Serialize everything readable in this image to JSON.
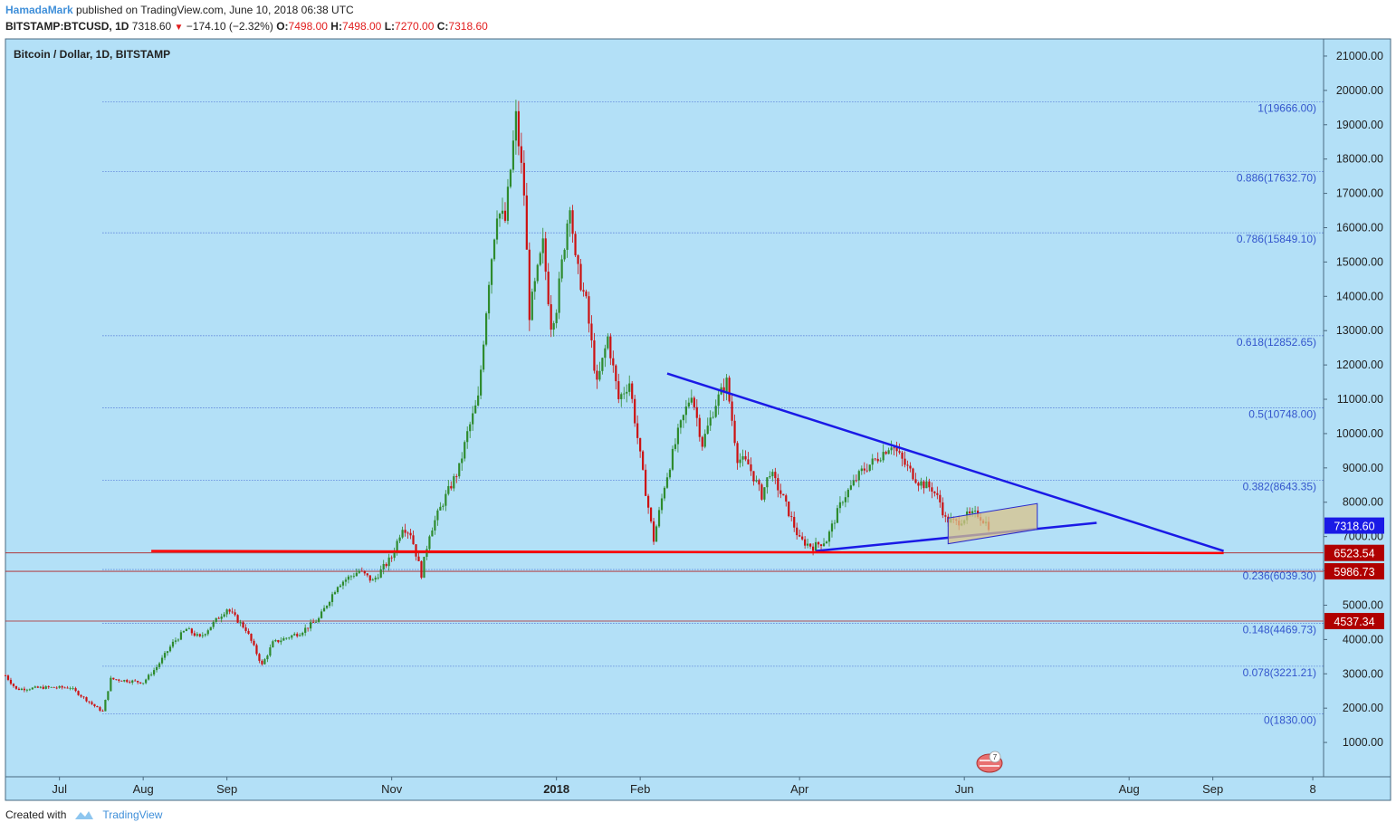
{
  "header": {
    "author": "HamadaMark",
    "published": "published on TradingView.com, June 10, 2018 06:38 UTC",
    "symbol": "BITSTAMP:BTCUSD, 1D",
    "last": "7318.60",
    "change": "−174.10 (−2.32%)",
    "o_label": "O:",
    "o_value": "7498.00",
    "h_label": "H:",
    "h_value": "7498.00",
    "l_label": "L:",
    "l_value": "7270.00",
    "c_label": "C:",
    "c_value": "7318.60"
  },
  "footer": {
    "created_with": "Created with",
    "brand": "TradingView"
  },
  "colors": {
    "background": "#b3e0f7",
    "up": "#2e8b2e",
    "down": "#cc1111",
    "trend_blue": "#1a1ae6",
    "support_red": "#ff0000",
    "fib": "#3355cc"
  },
  "chart_data": {
    "type": "candlestick",
    "title": "Bitcoin / Dollar, 1D, BITSTAMP",
    "ylim": [
      0,
      21500
    ],
    "y_ticks": [
      "1000.00",
      "2000.00",
      "3000.00",
      "4000.00",
      "5000.00",
      "6000.00",
      "7000.00",
      "8000.00",
      "9000.00",
      "10000.00",
      "11000.00",
      "12000.00",
      "13000.00",
      "14000.00",
      "15000.00",
      "16000.00",
      "17000.00",
      "18000.00",
      "19000.00",
      "20000.00",
      "21000.00"
    ],
    "x_ticks": [
      {
        "date": "2017-07-01",
        "label": "Jul"
      },
      {
        "date": "2017-08-01",
        "label": "Aug"
      },
      {
        "date": "2017-09-01",
        "label": "Sep"
      },
      {
        "date": "2017-11-01",
        "label": "Nov"
      },
      {
        "date": "2018-01-01",
        "label": "2018",
        "bold": true
      },
      {
        "date": "2018-02-01",
        "label": "Feb"
      },
      {
        "date": "2018-04-01",
        "label": "Apr"
      },
      {
        "date": "2018-06-01",
        "label": "Jun"
      },
      {
        "date": "2018-08-01",
        "label": "Aug"
      },
      {
        "date": "2018-09-01",
        "label": "Sep"
      },
      {
        "date": "2018-10-08",
        "label": "8"
      }
    ],
    "x_range": [
      "2017-06-11",
      "2018-10-12"
    ],
    "price_anchors": [
      [
        "2017-06-11",
        2950
      ],
      [
        "2017-06-15",
        2550
      ],
      [
        "2017-06-25",
        2600
      ],
      [
        "2017-07-05",
        2600
      ],
      [
        "2017-07-15",
        2000
      ],
      [
        "2017-07-17",
        1900
      ],
      [
        "2017-07-20",
        2850
      ],
      [
        "2017-08-01",
        2750
      ],
      [
        "2017-08-06",
        3200
      ],
      [
        "2017-08-12",
        3900
      ],
      [
        "2017-08-17",
        4300
      ],
      [
        "2017-08-22",
        4050
      ],
      [
        "2017-09-01",
        4900
      ],
      [
        "2017-09-08",
        4300
      ],
      [
        "2017-09-14",
        3250
      ],
      [
        "2017-09-18",
        3900
      ],
      [
        "2017-09-28",
        4200
      ],
      [
        "2017-10-05",
        4600
      ],
      [
        "2017-10-12",
        5600
      ],
      [
        "2017-10-20",
        6000
      ],
      [
        "2017-10-25",
        5700
      ],
      [
        "2017-11-01",
        6400
      ],
      [
        "2017-11-05",
        7300
      ],
      [
        "2017-11-08",
        7100
      ],
      [
        "2017-11-12",
        5900
      ],
      [
        "2017-11-15",
        7100
      ],
      [
        "2017-11-20",
        8000
      ],
      [
        "2017-11-26",
        9000
      ],
      [
        "2017-11-29",
        10000
      ],
      [
        "2017-12-03",
        11000
      ],
      [
        "2017-12-07",
        14500
      ],
      [
        "2017-12-10",
        16500
      ],
      [
        "2017-12-13",
        16200
      ],
      [
        "2017-12-17",
        19200
      ],
      [
        "2017-12-20",
        17000
      ],
      [
        "2017-12-22",
        13500
      ],
      [
        "2017-12-27",
        15500
      ],
      [
        "2017-12-30",
        13200
      ],
      [
        "2018-01-01",
        13700
      ],
      [
        "2018-01-06",
        16800
      ],
      [
        "2018-01-08",
        15000
      ],
      [
        "2018-01-12",
        13800
      ],
      [
        "2018-01-16",
        11400
      ],
      [
        "2018-01-20",
        12800
      ],
      [
        "2018-01-24",
        11000
      ],
      [
        "2018-01-28",
        11500
      ],
      [
        "2018-02-02",
        8800
      ],
      [
        "2018-02-06",
        6900
      ],
      [
        "2018-02-10",
        8500
      ],
      [
        "2018-02-15",
        10000
      ],
      [
        "2018-02-20",
        11200
      ],
      [
        "2018-02-24",
        9700
      ],
      [
        "2018-03-01",
        10900
      ],
      [
        "2018-03-05",
        11500
      ],
      [
        "2018-03-09",
        9300
      ],
      [
        "2018-03-13",
        9100
      ],
      [
        "2018-03-18",
        8200
      ],
      [
        "2018-03-21",
        8900
      ],
      [
        "2018-03-26",
        8100
      ],
      [
        "2018-04-01",
        6900
      ],
      [
        "2018-04-06",
        6700
      ],
      [
        "2018-04-11",
        6900
      ],
      [
        "2018-04-17",
        8100
      ],
      [
        "2018-04-24",
        8900
      ],
      [
        "2018-04-30",
        9300
      ],
      [
        "2018-05-05",
        9700
      ],
      [
        "2018-05-10",
        9100
      ],
      [
        "2018-05-15",
        8600
      ],
      [
        "2018-05-20",
        8400
      ],
      [
        "2018-05-23",
        8000
      ],
      [
        "2018-05-25",
        7500
      ],
      [
        "2018-05-29",
        7400
      ],
      [
        "2018-06-02",
        7600
      ],
      [
        "2018-06-06",
        7650
      ],
      [
        "2018-06-10",
        7318
      ]
    ],
    "fib_levels": [
      {
        "value": 19666,
        "label": "1(19666.00)"
      },
      {
        "value": 17632.7,
        "label": "0.886(17632.70)"
      },
      {
        "value": 15849.1,
        "label": "0.786(15849.10)"
      },
      {
        "value": 12852.65,
        "label": "0.618(12852.65)"
      },
      {
        "value": 10748,
        "label": "0.5(10748.00)"
      },
      {
        "value": 8643.35,
        "label": "0.382(8643.35)"
      },
      {
        "value": 6039.3,
        "label": "0.236(6039.30)"
      },
      {
        "value": 4469.73,
        "label": "0.148(4469.73)"
      },
      {
        "value": 3221.21,
        "label": "0.078(3221.21)"
      },
      {
        "value": 1830,
        "label": "0(1830.00)"
      }
    ],
    "price_labels": [
      {
        "value": 7318.6,
        "label": "7318.60",
        "color": "#1a1ae6"
      },
      {
        "value": 6523.54,
        "label": "6523.54",
        "color": "#b00000"
      },
      {
        "value": 5986.73,
        "label": "5986.73",
        "color": "#b00000"
      },
      {
        "value": 4537.34,
        "label": "4537.34",
        "color": "#b00000"
      }
    ],
    "h_lines": [
      6523.54,
      5986.73,
      4537.34
    ],
    "trendlines": [
      {
        "from": [
          "2018-02-11",
          11750
        ],
        "to": [
          "2018-09-05",
          6580
        ],
        "color": "#1a1ae6"
      },
      {
        "from": [
          "2018-04-07",
          6580
        ],
        "to": [
          "2018-07-20",
          7400
        ],
        "color": "#1a1ae6"
      },
      {
        "from": [
          "2017-08-04",
          6580
        ],
        "to": [
          "2018-09-05",
          6520
        ],
        "color": "#ff0000"
      }
    ],
    "box": {
      "from": [
        "2018-05-26",
        7750
      ],
      "to": [
        "2018-06-28",
        7000
      ]
    }
  }
}
